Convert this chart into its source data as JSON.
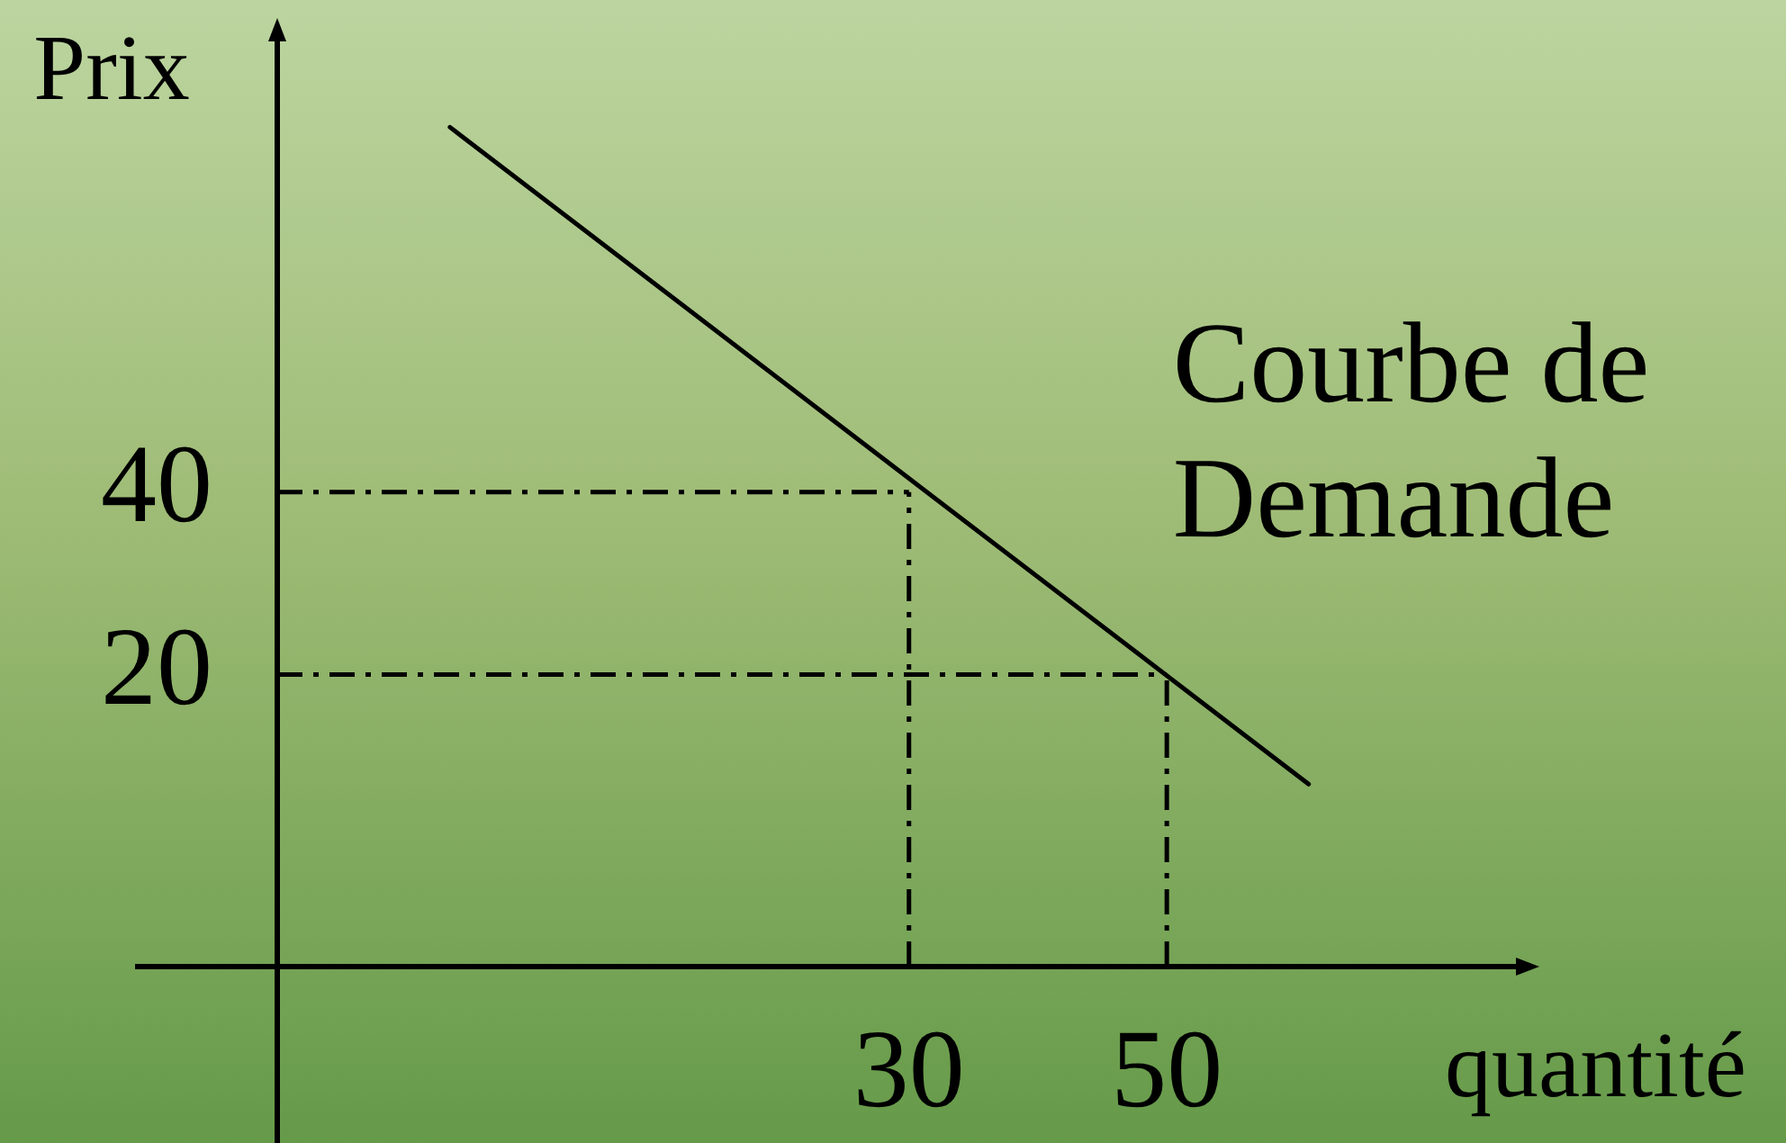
{
  "chart_data": {
    "type": "line",
    "xlabel": "quantité",
    "ylabel": "Prix",
    "x": [
      -5.6,
      61
    ],
    "series": [
      {
        "name": "Courbe de Demande",
        "color": "#000000",
        "values": [
          80,
          8
        ]
      }
    ],
    "xlim": [
      -19,
      77.5
    ],
    "ylim": [
      -12,
      90
    ],
    "xticks": [
      30,
      50
    ],
    "yticks": [
      20,
      40
    ],
    "ref_lines": [
      {
        "axis": "y",
        "value": 40,
        "color": "#000000",
        "line_style": "dashed"
      },
      {
        "axis": "y",
        "value": 20,
        "color": "#000000",
        "line_style": "dashed"
      },
      {
        "axis": "x",
        "value": 30,
        "color": "#000000",
        "line_style": "dashed"
      },
      {
        "axis": "x",
        "value": 50,
        "color": "#000000",
        "line_style": "dashed"
      }
    ],
    "grid": false,
    "legend": false,
    "marker": "none"
  }
}
